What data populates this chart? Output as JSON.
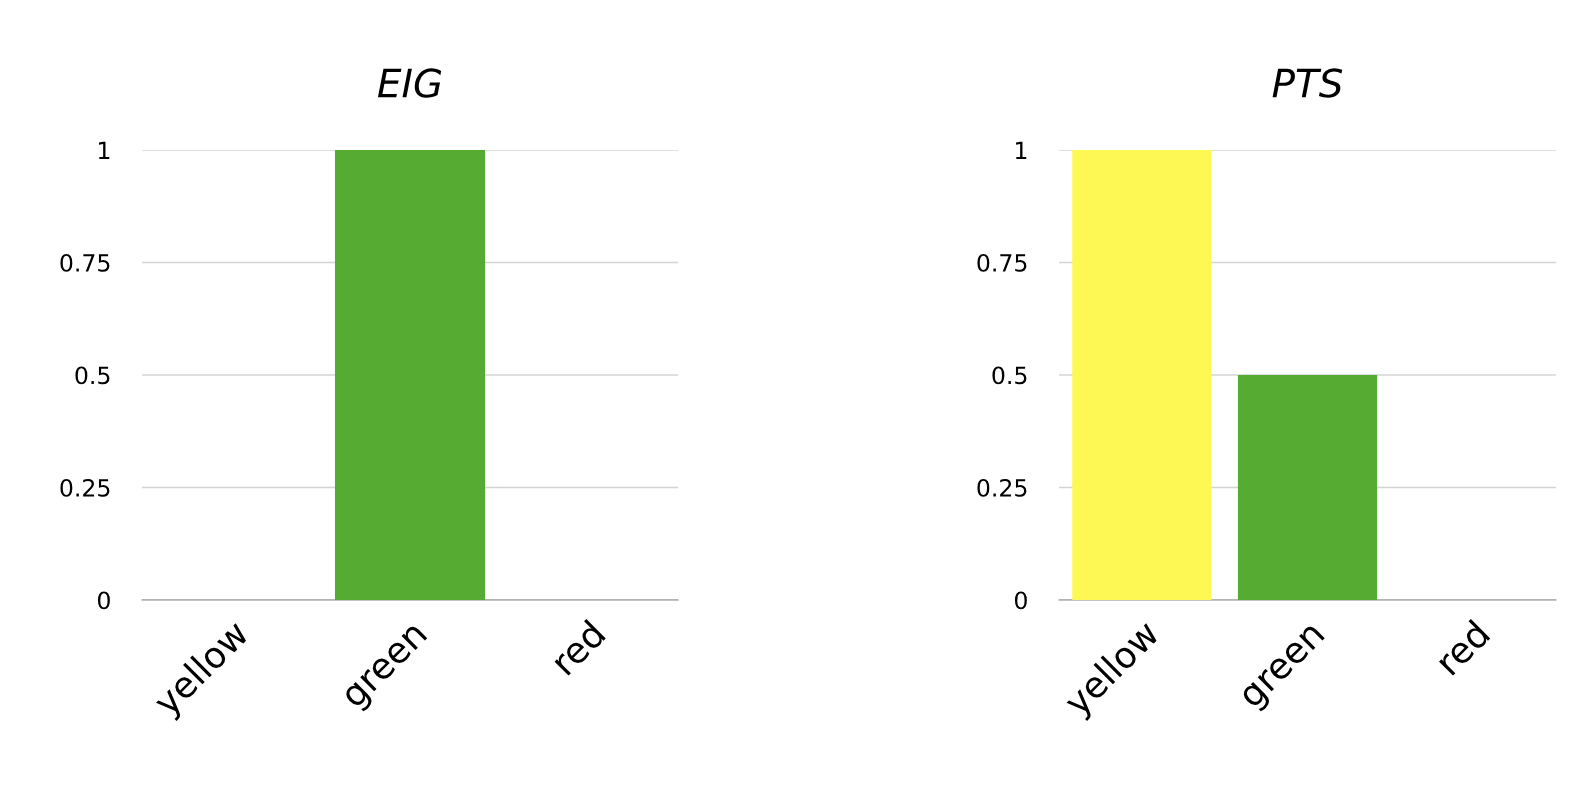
{
  "chart_data": [
    {
      "type": "bar",
      "title": "EIG",
      "categories": [
        "yellow",
        "green",
        "red"
      ],
      "values": [
        0,
        1,
        0
      ],
      "colors": [
        "#fdf853",
        "#56ab33",
        "#e0322b"
      ],
      "ylim": [
        0,
        1
      ],
      "yticks": [
        0,
        0.25,
        0.5,
        0.75,
        1
      ],
      "grid": "y"
    },
    {
      "type": "bar",
      "title": "PTS",
      "categories": [
        "yellow",
        "green",
        "red"
      ],
      "values": [
        1,
        0.5,
        0
      ],
      "colors": [
        "#fdf853",
        "#56ab33",
        "#e0322b"
      ],
      "ylim": [
        0,
        1
      ],
      "yticks": [
        0,
        0.25,
        0.5,
        0.75,
        1
      ],
      "grid": "y"
    }
  ]
}
